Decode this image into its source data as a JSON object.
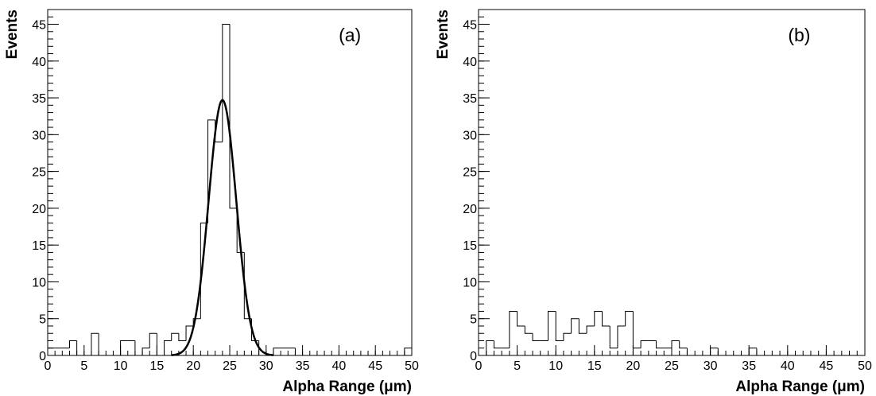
{
  "chart_data": [
    {
      "type": "histogram",
      "annotation": "(a)",
      "x_label": "Alpha Range (μm)",
      "y_label": "Events",
      "color": "#000000",
      "bins": [
        0,
        1,
        2,
        3,
        4,
        5,
        6,
        7,
        8,
        9,
        10,
        11,
        12,
        13,
        14,
        15,
        16,
        17,
        18,
        19,
        20,
        21,
        22,
        23,
        24,
        25,
        26,
        27,
        28,
        29,
        30,
        31,
        32,
        33,
        34,
        35,
        36,
        37,
        38,
        39,
        40,
        41,
        42,
        43,
        44,
        45,
        46,
        47,
        48,
        49,
        50
      ],
      "values": [
        1,
        1,
        1,
        2,
        0,
        0,
        3,
        0,
        0,
        0,
        2,
        2,
        0,
        1,
        3,
        0,
        2,
        3,
        2,
        4,
        5,
        18,
        32,
        29,
        45,
        20,
        14,
        5,
        2,
        0,
        0,
        1,
        1,
        1,
        0,
        0,
        0,
        0,
        0,
        0,
        0,
        0,
        0,
        0,
        0,
        0,
        0,
        0,
        0,
        1
      ],
      "fit": {
        "amplitude": 34.7,
        "mean": 24,
        "sigma": 1.9,
        "range": [
          17,
          31
        ]
      },
      "xlim": [
        0,
        50
      ],
      "ylim": [
        0,
        47
      ],
      "xticks": [
        0,
        5,
        10,
        15,
        20,
        25,
        30,
        35,
        40,
        45,
        50
      ],
      "yticks": [
        0,
        5,
        10,
        15,
        20,
        25,
        30,
        35,
        40,
        45
      ]
    },
    {
      "type": "histogram",
      "annotation": "(b)",
      "x_label": "Alpha Range (μm)",
      "y_label": "Events",
      "color": "#000000",
      "bins": [
        0,
        1,
        2,
        3,
        4,
        5,
        6,
        7,
        8,
        9,
        10,
        11,
        12,
        13,
        14,
        15,
        16,
        17,
        18,
        19,
        20,
        21,
        22,
        23,
        24,
        25,
        26,
        27,
        28,
        29,
        30,
        31,
        32,
        33,
        34,
        35,
        36,
        37,
        38,
        39,
        40,
        41,
        42,
        43,
        44,
        45,
        46,
        47,
        48,
        49,
        50
      ],
      "values": [
        0,
        2,
        1,
        1,
        6,
        4,
        3,
        2,
        2,
        6,
        2,
        3,
        5,
        3,
        4,
        6,
        4,
        1,
        4,
        6,
        1,
        2,
        2,
        1,
        1,
        2,
        1,
        0,
        0,
        0,
        1,
        0,
        0,
        0,
        0,
        1,
        0,
        0,
        0,
        0,
        0,
        0,
        0,
        0,
        0,
        0,
        0,
        0,
        0,
        0
      ],
      "xlim": [
        0,
        50
      ],
      "ylim": [
        0,
        47
      ],
      "xticks": [
        0,
        5,
        10,
        15,
        20,
        25,
        30,
        35,
        40,
        45,
        50
      ],
      "yticks": [
        0,
        5,
        10,
        15,
        20,
        25,
        30,
        35,
        40,
        45
      ]
    }
  ]
}
